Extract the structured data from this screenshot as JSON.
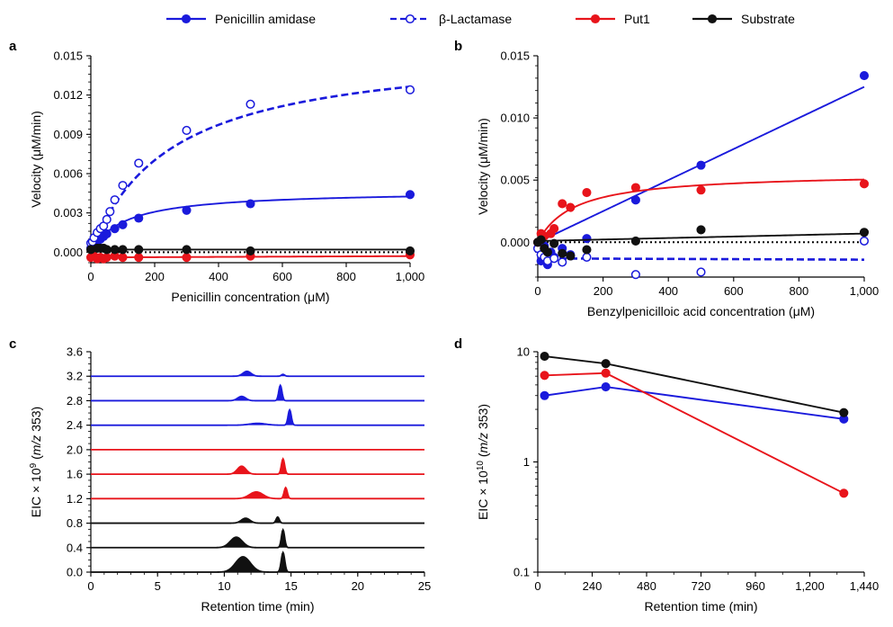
{
  "legend": [
    {
      "label": "Penicillin amidase",
      "color": "#1a1adc",
      "dash": false,
      "filled": true
    },
    {
      "label": "β-Lactamase",
      "color": "#1a1adc",
      "dash": true,
      "filled": false
    },
    {
      "label": "Put1",
      "color": "#e8141b",
      "dash": false,
      "filled": true
    },
    {
      "label": "Substrate",
      "color": "#111111",
      "dash": false,
      "filled": true
    }
  ],
  "chart_data": [
    {
      "panel": "a",
      "type": "scatter",
      "xlabel": "Penicillin concentration (μM)",
      "ylabel": "Velocity (μM/min)",
      "xlim": [
        0,
        1000
      ],
      "ylim": [
        -0.0008,
        0.015
      ],
      "xticks": [
        0,
        200,
        400,
        600,
        800,
        1000
      ],
      "xtick_labels": [
        "0",
        "200",
        "400",
        "600",
        "800",
        "1,000"
      ],
      "yticks": [
        0,
        0.003,
        0.006,
        0.009,
        0.012,
        0.015
      ],
      "ytick_labels": [
        "0.000",
        "0.003",
        "0.006",
        "0.009",
        "0.012",
        "0.015"
      ],
      "baseline": 0,
      "series": [
        {
          "name": "Penicillin amidase",
          "color": "#1a1adc",
          "marker": "filled",
          "fit": {
            "kind": "mm",
            "vmax": 0.0047,
            "km": 105,
            "x0": 0,
            "x1": 1000,
            "dash": false
          },
          "x": [
            0,
            5,
            10,
            20,
            30,
            40,
            50,
            75,
            100,
            150,
            300,
            500,
            1000
          ],
          "y": [
            0.0003,
            0.0004,
            0.0005,
            0.0008,
            0.001,
            0.0012,
            0.0014,
            0.0018,
            0.0021,
            0.0026,
            0.0032,
            0.0037,
            0.0044
          ]
        },
        {
          "name": "β-Lactamase",
          "color": "#1a1adc",
          "marker": "open",
          "fit": {
            "kind": "mm",
            "vmax": 0.0158,
            "km": 250,
            "x0": 0,
            "x1": 1000,
            "dash": true
          },
          "x": [
            0,
            5,
            10,
            20,
            30,
            40,
            50,
            60,
            75,
            100,
            150,
            300,
            500,
            1000
          ],
          "y": [
            0.0007,
            0.0008,
            0.0011,
            0.0015,
            0.0018,
            0.002,
            0.0025,
            0.0031,
            0.004,
            0.0051,
            0.0068,
            0.0093,
            0.0113,
            0.0124
          ]
        },
        {
          "name": "Put1",
          "color": "#e8141b",
          "marker": "filled",
          "fit": {
            "kind": "line",
            "y0": -0.0004,
            "y1": -0.0003,
            "x0": 0,
            "x1": 1000,
            "dash": false
          },
          "x": [
            0,
            10,
            20,
            30,
            40,
            50,
            75,
            100,
            150,
            300,
            500,
            1000
          ],
          "y": [
            -0.0004,
            -0.0003,
            -0.0005,
            -0.0004,
            -0.0005,
            -0.0004,
            -0.0003,
            -0.0004,
            -0.0004,
            -0.0004,
            -0.0003,
            -0.0002
          ]
        },
        {
          "name": "Substrate",
          "color": "#111111",
          "marker": "filled",
          "fit": {
            "kind": "line",
            "y0": 0.0002,
            "y1": 0.0002,
            "x0": 0,
            "x1": 1000,
            "dash": false
          },
          "x": [
            0,
            20,
            30,
            40,
            50,
            75,
            100,
            150,
            300,
            500,
            1000
          ],
          "y": [
            0.0002,
            0.0003,
            0.0003,
            0.0003,
            0.0002,
            0.0002,
            0.0002,
            0.0002,
            0.0002,
            0.0001,
            0.0001
          ]
        }
      ]
    },
    {
      "panel": "b",
      "type": "scatter",
      "xlabel": "Benzylpenicilloic acid concentration (μM)",
      "ylabel": "Velocity (μM/min)",
      "xlim": [
        0,
        1000
      ],
      "ylim": [
        -0.0028,
        0.015
      ],
      "xticks": [
        0,
        200,
        400,
        600,
        800,
        1000
      ],
      "xtick_labels": [
        "0",
        "200",
        "400",
        "600",
        "800",
        "1,000"
      ],
      "yticks": [
        0,
        0.005,
        0.01,
        0.015
      ],
      "ytick_labels": [
        "0.000",
        "0.005",
        "0.010",
        "0.015"
      ],
      "baseline": 0,
      "series": [
        {
          "name": "Penicillin amidase",
          "color": "#1a1adc",
          "marker": "filled",
          "fit": {
            "kind": "line",
            "y0": 0.0,
            "y1": 0.0125,
            "x0": 0,
            "x1": 1000,
            "dash": false
          },
          "x": [
            0,
            10,
            20,
            30,
            40,
            50,
            75,
            100,
            150,
            300,
            500,
            1000
          ],
          "y": [
            0.0,
            -0.0015,
            -0.0003,
            -0.0018,
            -0.0008,
            -0.0012,
            -0.0005,
            -0.001,
            0.0003,
            0.0034,
            0.0062,
            0.0134
          ]
        },
        {
          "name": "β-Lactamase",
          "color": "#1a1adc",
          "marker": "open",
          "fit": {
            "kind": "line",
            "y0": -0.0013,
            "y1": -0.0014,
            "x0": 0,
            "x1": 1000,
            "dash": true
          },
          "x": [
            0,
            10,
            20,
            30,
            50,
            75,
            100,
            150,
            300,
            500,
            1000
          ],
          "y": [
            -0.0005,
            -0.001,
            -0.0012,
            -0.0015,
            -0.0013,
            -0.0016,
            -0.0011,
            -0.0012,
            -0.0026,
            -0.0024,
            0.0001
          ]
        },
        {
          "name": "Put1",
          "color": "#e8141b",
          "marker": "filled",
          "fit": {
            "kind": "mm",
            "vmax": 0.0056,
            "km": 110,
            "x0": 0,
            "x1": 1000,
            "dash": false
          },
          "x": [
            0,
            10,
            20,
            40,
            50,
            75,
            100,
            150,
            300,
            500,
            1000
          ],
          "y": [
            0.0,
            0.0007,
            0.0005,
            0.0007,
            0.0011,
            0.0031,
            0.0028,
            0.004,
            0.0044,
            0.0042,
            0.0047
          ]
        },
        {
          "name": "Substrate",
          "color": "#111111",
          "marker": "filled",
          "fit": {
            "kind": "line",
            "y0": 0.0001,
            "y1": 0.0007,
            "x0": 0,
            "x1": 1000,
            "dash": false
          },
          "x": [
            0,
            10,
            20,
            30,
            50,
            75,
            100,
            150,
            300,
            500,
            1000
          ],
          "y": [
            0.0,
            0.0002,
            -0.0005,
            -0.0008,
            -0.0001,
            -0.0009,
            -0.0011,
            -0.0006,
            0.0001,
            0.001,
            0.0008
          ]
        }
      ]
    },
    {
      "panel": "c",
      "type": "line",
      "xlabel": "Retention time (min)",
      "ylabel_parts": [
        "EIC × 10",
        "9",
        " (",
        "m/z",
        " 353)"
      ],
      "xlim": [
        0,
        25
      ],
      "ylim": [
        0,
        3.6
      ],
      "xticks": [
        0,
        5,
        10,
        15,
        20,
        25
      ],
      "xtick_labels": [
        "0",
        "5",
        "10",
        "15",
        "20",
        "25"
      ],
      "yticks": [
        0,
        0.4,
        0.8,
        1.2,
        1.6,
        2.0,
        2.4,
        2.8,
        3.2,
        3.6
      ],
      "ytick_labels": [
        "0.0",
        "0.4",
        "0.8",
        "1.2",
        "1.6",
        "2.0",
        "2.4",
        "2.8",
        "3.2",
        "3.6"
      ],
      "traces": [
        {
          "color": "#1a1adc",
          "baseline": 3.2,
          "peaks": [
            [
              11.7,
              0.08,
              0.3
            ],
            [
              14.4,
              0.03,
              0.12
            ]
          ]
        },
        {
          "color": "#1a1adc",
          "baseline": 2.8,
          "peaks": [
            [
              11.3,
              0.07,
              0.3
            ],
            [
              14.2,
              0.25,
              0.12
            ]
          ]
        },
        {
          "color": "#1a1adc",
          "baseline": 2.4,
          "peaks": [
            [
              12.5,
              0.03,
              0.6
            ],
            [
              14.9,
              0.25,
              0.12
            ]
          ]
        },
        {
          "color": "#e8141b",
          "baseline": 2.0,
          "peaks": []
        },
        {
          "color": "#e8141b",
          "baseline": 1.6,
          "peaks": [
            [
              11.3,
              0.13,
              0.32
            ],
            [
              14.4,
              0.25,
              0.12
            ]
          ]
        },
        {
          "color": "#e8141b",
          "baseline": 1.2,
          "peaks": [
            [
              12.4,
              0.11,
              0.5
            ],
            [
              14.6,
              0.18,
              0.12
            ]
          ]
        },
        {
          "color": "#111111",
          "baseline": 0.8,
          "peaks": [
            [
              11.6,
              0.08,
              0.32
            ],
            [
              14.0,
              0.1,
              0.12
            ]
          ]
        },
        {
          "color": "#111111",
          "baseline": 0.4,
          "peaks": [
            [
              10.9,
              0.17,
              0.45
            ],
            [
              14.4,
              0.29,
              0.12
            ]
          ]
        },
        {
          "color": "#111111",
          "baseline": 0.0,
          "peaks": [
            [
              11.4,
              0.25,
              0.55
            ],
            [
              14.4,
              0.32,
              0.13
            ]
          ]
        }
      ]
    },
    {
      "panel": "d",
      "type": "line",
      "xlabel": "Retention time (min)",
      "ylabel_parts": [
        "EIC × 10",
        "10",
        " (",
        "m/z",
        " 353)"
      ],
      "xlim": [
        0,
        1440
      ],
      "ylim": [
        0.1,
        10
      ],
      "log_y": true,
      "xticks": [
        0,
        240,
        480,
        720,
        960,
        1200,
        1440
      ],
      "xtick_labels": [
        "0",
        "240",
        "480",
        "720",
        "960",
        "1,200",
        "1,440"
      ],
      "yticks": [
        0.1,
        1,
        10
      ],
      "ytick_labels": [
        "0.1",
        "1",
        "10"
      ],
      "series": [
        {
          "name": "Penicillin amidase",
          "color": "#1a1adc",
          "x": [
            30,
            300,
            1350
          ],
          "y": [
            4.0,
            4.8,
            2.45
          ]
        },
        {
          "name": "Put1",
          "color": "#e8141b",
          "x": [
            30,
            300,
            1350
          ],
          "y": [
            6.1,
            6.4,
            0.52
          ]
        },
        {
          "name": "Substrate",
          "color": "#111111",
          "x": [
            30,
            300,
            1350
          ],
          "y": [
            9.1,
            7.8,
            2.8
          ]
        }
      ]
    }
  ]
}
